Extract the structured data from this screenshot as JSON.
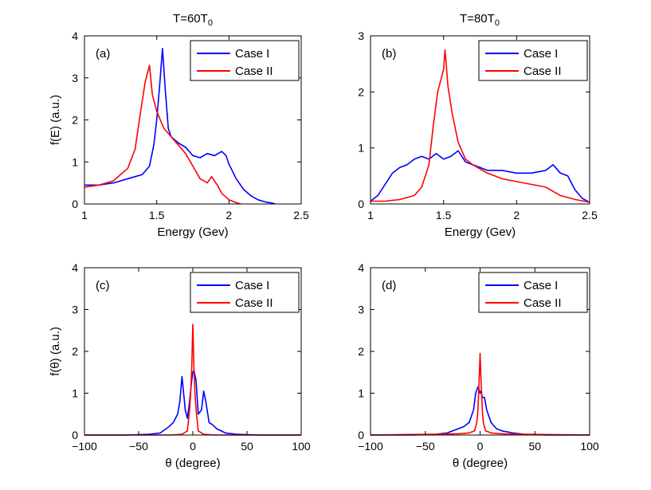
{
  "column_titles": [
    {
      "main": "T=60T",
      "sub": "0"
    },
    {
      "main": "T=80T",
      "sub": "0"
    }
  ],
  "colors": {
    "case1": "#0000ff",
    "case2": "#ff0000",
    "axis": "#000000"
  },
  "chart_data": [
    {
      "type": "line",
      "panel_label": "(a)",
      "xlabel": "Energy (Gev)",
      "ylabel": "f(E) (a.u.)",
      "xlim": [
        1,
        2.5
      ],
      "ylim": [
        0,
        4
      ],
      "xticks": [
        1,
        1.5,
        2,
        2.5
      ],
      "xtick_labels": [
        "1",
        "1.5",
        "2",
        "2.5"
      ],
      "yticks": [
        0,
        1,
        2,
        3,
        4
      ],
      "ytick_labels": [
        "0",
        "1",
        "2",
        "3",
        "4"
      ],
      "legend": "top-right",
      "series": [
        {
          "name": "Case I",
          "color": "#0000ff",
          "x": [
            1.0,
            1.1,
            1.2,
            1.3,
            1.35,
            1.4,
            1.45,
            1.48,
            1.5,
            1.52,
            1.54,
            1.56,
            1.58,
            1.6,
            1.65,
            1.7,
            1.75,
            1.8,
            1.85,
            1.9,
            1.95,
            1.98,
            2.0,
            2.05,
            2.1,
            2.15,
            2.2,
            2.25,
            2.3,
            2.32
          ],
          "y": [
            0.45,
            0.45,
            0.5,
            0.6,
            0.65,
            0.7,
            0.9,
            1.4,
            2.0,
            2.8,
            3.7,
            2.7,
            1.8,
            1.6,
            1.45,
            1.35,
            1.15,
            1.1,
            1.2,
            1.15,
            1.25,
            1.15,
            0.95,
            0.6,
            0.35,
            0.2,
            0.1,
            0.05,
            0.02,
            0.0
          ]
        },
        {
          "name": "Case II",
          "color": "#ff0000",
          "x": [
            1.0,
            1.1,
            1.2,
            1.25,
            1.3,
            1.35,
            1.38,
            1.42,
            1.45,
            1.47,
            1.5,
            1.55,
            1.6,
            1.65,
            1.7,
            1.75,
            1.8,
            1.85,
            1.88,
            1.92,
            1.95,
            2.0,
            2.05,
            2.08
          ],
          "y": [
            0.4,
            0.45,
            0.55,
            0.7,
            0.85,
            1.3,
            2.0,
            2.9,
            3.3,
            2.6,
            2.2,
            1.8,
            1.6,
            1.4,
            1.2,
            0.9,
            0.6,
            0.5,
            0.65,
            0.45,
            0.25,
            0.1,
            0.03,
            0.0
          ]
        }
      ]
    },
    {
      "type": "line",
      "panel_label": "(b)",
      "xlabel": "Energy (Gev)",
      "ylabel": "",
      "xlim": [
        1,
        2.5
      ],
      "ylim": [
        0,
        3
      ],
      "xticks": [
        1,
        1.5,
        2,
        2.5
      ],
      "xtick_labels": [
        "1",
        "1.5",
        "2",
        "2.5"
      ],
      "yticks": [
        0,
        1,
        2,
        3
      ],
      "ytick_labels": [
        "0",
        "1",
        "2",
        "3"
      ],
      "legend": "top-right",
      "series": [
        {
          "name": "Case I",
          "color": "#0000ff",
          "x": [
            1.0,
            1.05,
            1.1,
            1.15,
            1.2,
            1.25,
            1.3,
            1.35,
            1.4,
            1.45,
            1.5,
            1.55,
            1.6,
            1.65,
            1.7,
            1.8,
            1.9,
            2.0,
            2.1,
            2.2,
            2.25,
            2.3,
            2.35,
            2.4,
            2.45,
            2.5
          ],
          "y": [
            0.05,
            0.15,
            0.35,
            0.55,
            0.65,
            0.7,
            0.8,
            0.85,
            0.8,
            0.9,
            0.8,
            0.85,
            0.95,
            0.75,
            0.7,
            0.6,
            0.6,
            0.55,
            0.55,
            0.6,
            0.7,
            0.55,
            0.5,
            0.25,
            0.1,
            0.03
          ]
        },
        {
          "name": "Case II",
          "color": "#ff0000",
          "x": [
            1.0,
            1.1,
            1.2,
            1.3,
            1.35,
            1.4,
            1.43,
            1.46,
            1.48,
            1.5,
            1.51,
            1.53,
            1.56,
            1.6,
            1.65,
            1.7,
            1.8,
            1.9,
            2.0,
            2.1,
            2.2,
            2.3,
            2.4,
            2.5
          ],
          "y": [
            0.05,
            0.05,
            0.08,
            0.15,
            0.3,
            0.7,
            1.4,
            2.0,
            2.2,
            2.4,
            2.75,
            2.1,
            1.6,
            1.1,
            0.8,
            0.7,
            0.55,
            0.45,
            0.4,
            0.35,
            0.3,
            0.15,
            0.08,
            0.03
          ]
        }
      ]
    },
    {
      "type": "line",
      "panel_label": "(c)",
      "xlabel": "θ (degree)",
      "ylabel": "f(θ) (a.u.)",
      "xlim": [
        -100,
        100
      ],
      "ylim": [
        0,
        4
      ],
      "xticks": [
        -100,
        -50,
        0,
        50,
        100
      ],
      "xtick_labels": [
        "−100",
        "−50",
        "0",
        "50",
        "100"
      ],
      "yticks": [
        0,
        1,
        2,
        3,
        4
      ],
      "ytick_labels": [
        "0",
        "1",
        "2",
        "3",
        "4"
      ],
      "legend": "top-right",
      "series": [
        {
          "name": "Case I",
          "color": "#0000ff",
          "x": [
            -100,
            -60,
            -40,
            -30,
            -22,
            -18,
            -14,
            -12,
            -10,
            -7,
            -5,
            -3,
            -1,
            0,
            1,
            3,
            5,
            8,
            10,
            12,
            15,
            18,
            22,
            30,
            40,
            60,
            100
          ],
          "y": [
            0.0,
            0.0,
            0.02,
            0.05,
            0.2,
            0.3,
            0.5,
            0.8,
            1.4,
            0.6,
            0.4,
            0.8,
            1.3,
            1.5,
            1.55,
            1.3,
            0.5,
            0.6,
            1.05,
            0.8,
            0.3,
            0.25,
            0.15,
            0.05,
            0.02,
            0.0,
            0.0
          ]
        },
        {
          "name": "Case II",
          "color": "#ff0000",
          "x": [
            -100,
            -20,
            -10,
            -5,
            -3,
            -2,
            -1,
            0,
            1,
            2,
            3,
            5,
            10,
            20,
            100
          ],
          "y": [
            0.0,
            0.0,
            0.02,
            0.1,
            0.6,
            1.0,
            1.6,
            2.65,
            1.6,
            1.0,
            0.6,
            0.1,
            0.02,
            0.0,
            0.0
          ]
        }
      ]
    },
    {
      "type": "line",
      "panel_label": "(d)",
      "xlabel": "θ (degree)",
      "ylabel": "",
      "xlim": [
        -100,
        100
      ],
      "ylim": [
        0,
        4
      ],
      "xticks": [
        -100,
        -50,
        0,
        50,
        100
      ],
      "xtick_labels": [
        "−100",
        "−50",
        "0",
        "50",
        "100"
      ],
      "yticks": [
        0,
        1,
        2,
        3,
        4
      ],
      "ytick_labels": [
        "0",
        "1",
        "2",
        "3",
        "4"
      ],
      "legend": "top-right",
      "series": [
        {
          "name": "Case I",
          "color": "#0000ff",
          "x": [
            -100,
            -60,
            -40,
            -30,
            -20,
            -15,
            -10,
            -6,
            -4,
            -2,
            -1,
            0,
            1,
            2,
            4,
            6,
            10,
            15,
            20,
            30,
            40,
            60,
            100
          ],
          "y": [
            0.0,
            0.0,
            0.02,
            0.05,
            0.15,
            0.2,
            0.3,
            0.6,
            1.0,
            1.15,
            1.1,
            1.0,
            1.05,
            0.9,
            0.9,
            0.6,
            0.3,
            0.15,
            0.1,
            0.05,
            0.02,
            0.0,
            0.0
          ]
        },
        {
          "name": "Case II",
          "color": "#ff0000",
          "x": [
            -100,
            -40,
            -20,
            -10,
            -5,
            -3,
            -2,
            -1,
            0,
            1,
            2,
            3,
            5,
            10,
            20,
            40,
            100
          ],
          "y": [
            0.0,
            0.02,
            0.03,
            0.05,
            0.1,
            0.3,
            0.6,
            1.2,
            1.95,
            1.2,
            0.6,
            0.3,
            0.1,
            0.05,
            0.03,
            0.02,
            0.0
          ]
        }
      ]
    }
  ]
}
